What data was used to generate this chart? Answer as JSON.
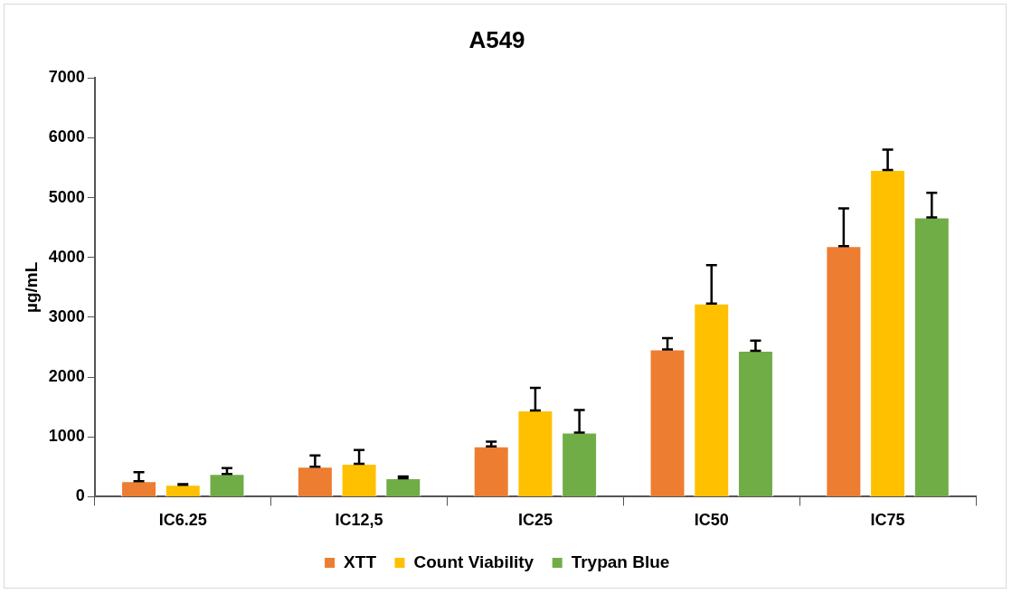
{
  "chart_data": {
    "type": "bar",
    "title": "A549",
    "ylabel": "µg/mL",
    "categories": [
      "IC6.25",
      "IC12,5",
      "IC25",
      "IC50",
      "IC75"
    ],
    "series": [
      {
        "name": "XTT",
        "color": "#ed7d31",
        "values": [
          260,
          500,
          840,
          2460,
          4190
        ],
        "errors": [
          [
            260,
            410
          ],
          [
            500,
            690
          ],
          [
            840,
            920
          ],
          [
            2460,
            2650
          ],
          [
            4190,
            4820
          ]
        ]
      },
      {
        "name": "Count Viability",
        "color": "#ffc000",
        "values": [
          200,
          550,
          1440,
          3230,
          5460
        ],
        "errors": [
          [
            200,
            210
          ],
          [
            550,
            780
          ],
          [
            1440,
            1820
          ],
          [
            3230,
            3870
          ],
          [
            5460,
            5800
          ]
        ]
      },
      {
        "name": "Trypan Blue",
        "color": "#70ad47",
        "values": [
          380,
          310,
          1070,
          2440,
          4670
        ],
        "errors": [
          [
            380,
            480
          ],
          [
            310,
            340
          ],
          [
            1070,
            1450
          ],
          [
            2440,
            2610
          ],
          [
            4670,
            5080
          ]
        ]
      }
    ],
    "ylim": [
      0,
      7000
    ],
    "yticks": [
      0,
      1000,
      2000,
      3000,
      4000,
      5000,
      6000,
      7000
    ],
    "grid": false,
    "legend": "bottom"
  }
}
